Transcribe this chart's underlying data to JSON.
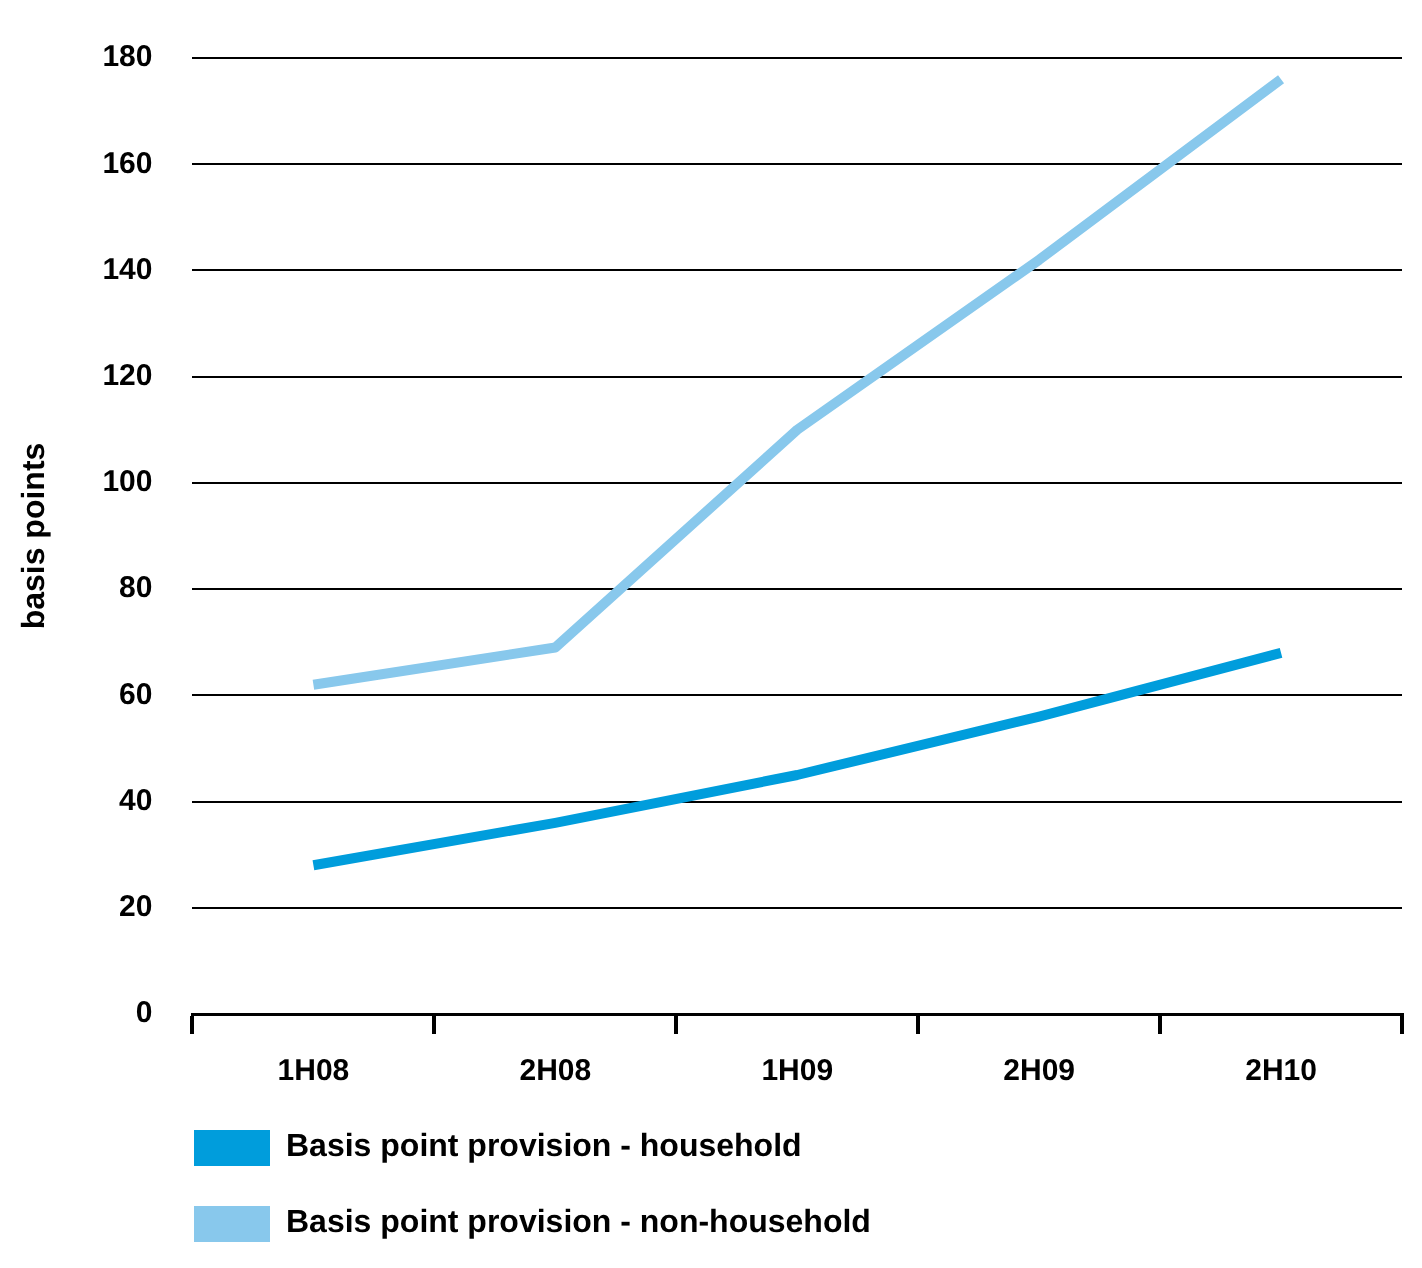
{
  "chart_data": {
    "type": "line",
    "ylabel": "basis points",
    "categories": [
      "1H08",
      "2H08",
      "1H09",
      "2H09",
      "2H10"
    ],
    "series": [
      {
        "name": "Basis point provision - household",
        "color": "#009ddc",
        "values": [
          28,
          36,
          45,
          56,
          68
        ]
      },
      {
        "name": "Basis point provision - non-household",
        "color": "#88c8ec",
        "values": [
          62,
          69,
          110,
          142,
          176
        ]
      }
    ],
    "ylim": [
      0,
      180
    ],
    "yticks": [
      0,
      20,
      40,
      60,
      80,
      100,
      120,
      140,
      160,
      180
    ],
    "grid": "y",
    "legend": "bottom",
    "marker": "none",
    "line_style": "solid"
  }
}
